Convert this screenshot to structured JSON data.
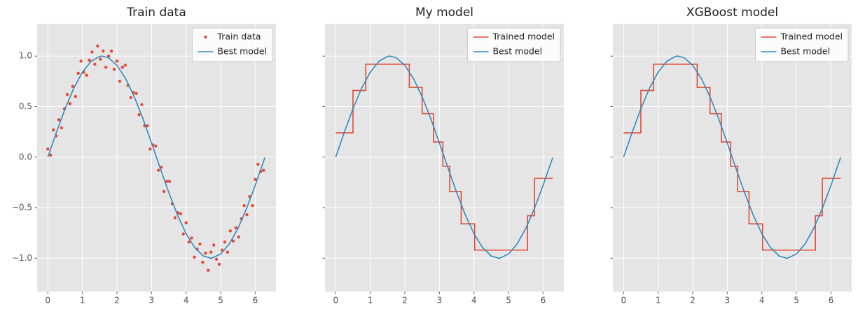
{
  "chart_data": [
    {
      "type": "line",
      "title": "Train data",
      "xlim": [
        -0.31,
        6.6
      ],
      "ylim": [
        -1.33,
        1.32
      ],
      "xticks": [
        0,
        1,
        2,
        3,
        4,
        5,
        6
      ],
      "yticks": [
        {
          "value": -1,
          "label": "−1.0"
        },
        {
          "value": -0.5,
          "label": "−0.5"
        },
        {
          "value": 0,
          "label": "0.0"
        },
        {
          "value": 0.5,
          "label": "0.5"
        },
        {
          "value": 1,
          "label": "1.0"
        }
      ],
      "ytick_labels": true,
      "grid": true,
      "legend": "upper right",
      "series": [
        {
          "name": "Train data",
          "color": "#e24a33",
          "mode": "points",
          "x": [
            0,
            0.08,
            0.16,
            0.24,
            0.32,
            0.4,
            0.48,
            0.56,
            0.64,
            0.72,
            0.8,
            0.88,
            0.96,
            1.04,
            1.12,
            1.2,
            1.28,
            1.36,
            1.44,
            1.52,
            1.6,
            1.68,
            1.76,
            1.84,
            1.92,
            2,
            2.08,
            2.16,
            2.24,
            2.32,
            2.4,
            2.48,
            2.56,
            2.64,
            2.72,
            2.8,
            2.88,
            2.96,
            3.04,
            3.12,
            3.2,
            3.28,
            3.36,
            3.44,
            3.52,
            3.6,
            3.68,
            3.76,
            3.84,
            3.92,
            4,
            4.08,
            4.16,
            4.24,
            4.32,
            4.4,
            4.48,
            4.56,
            4.64,
            4.72,
            4.8,
            4.88,
            4.96,
            5.04,
            5.12,
            5.2,
            5.28,
            5.36,
            5.44,
            5.52,
            5.6,
            5.68,
            5.76,
            5.84,
            5.92,
            6,
            6.08,
            6.16,
            6.24
          ],
          "values": [
            0.08,
            0.02,
            0.27,
            0.21,
            0.37,
            0.29,
            0.48,
            0.62,
            0.53,
            0.7,
            0.6,
            0.83,
            0.95,
            0.84,
            0.81,
            0.96,
            1.04,
            0.92,
            1.1,
            0.97,
            1.05,
            0.89,
            1,
            1.05,
            0.87,
            0.95,
            0.75,
            0.89,
            0.91,
            0.71,
            0.59,
            0.64,
            0.63,
            0.42,
            0.52,
            0.31,
            0.31,
            0.08,
            0.12,
            0.11,
            -0.13,
            -0.1,
            -0.34,
            -0.24,
            -0.24,
            -0.46,
            -0.6,
            -0.55,
            -0.56,
            -0.76,
            -0.65,
            -0.84,
            -0.8,
            -0.99,
            -0.91,
            -0.86,
            -1.04,
            -0.95,
            -1.12,
            -0.94,
            -0.87,
            -1.01,
            -1.06,
            -0.92,
            -0.84,
            -0.94,
            -0.73,
            -0.83,
            -0.7,
            -0.79,
            -0.61,
            -0.48,
            -0.57,
            -0.39,
            -0.48,
            -0.22,
            -0.07,
            -0.14,
            -0.13
          ]
        },
        {
          "name": "Best model",
          "color": "#348abd",
          "mode": "line",
          "x": [
            0,
            0.25,
            0.5,
            0.75,
            1,
            1.25,
            1.5,
            1.57,
            1.75,
            2,
            2.25,
            2.5,
            2.75,
            3,
            3.25,
            3.5,
            3.75,
            4,
            4.25,
            4.5,
            4.71,
            4.75,
            5,
            5.25,
            5.5,
            5.75,
            6,
            6.28
          ],
          "values": [
            0,
            0.247,
            0.479,
            0.682,
            0.841,
            0.949,
            0.997,
            1,
            0.984,
            0.909,
            0.778,
            0.598,
            0.382,
            0.141,
            -0.108,
            -0.351,
            -0.572,
            -0.757,
            -0.895,
            -0.978,
            -1,
            -0.999,
            -0.959,
            -0.859,
            -0.706,
            -0.508,
            -0.279,
            -0.003
          ]
        }
      ]
    },
    {
      "type": "line",
      "title": "My model",
      "xlim": [
        -0.31,
        6.6
      ],
      "ylim": [
        -1.33,
        1.32
      ],
      "xticks": [
        0,
        1,
        2,
        3,
        4,
        5,
        6
      ],
      "yticks": [
        -1,
        -0.5,
        0,
        0.5,
        1
      ],
      "ytick_labels": false,
      "grid": true,
      "legend": "upper right",
      "series": [
        {
          "name": "Trained model",
          "color": "#e24a33",
          "mode": "step",
          "x": [
            0,
            0.5,
            0.87,
            2.13,
            2.5,
            2.83,
            3.1,
            3.3,
            3.63,
            4.02,
            5.55,
            5.75,
            6.28
          ],
          "values": [
            0.24,
            0.66,
            0.92,
            0.69,
            0.43,
            0.15,
            -0.09,
            -0.34,
            -0.66,
            -0.92,
            -0.58,
            -0.21,
            -0.21
          ]
        },
        {
          "name": "Best model",
          "color": "#348abd",
          "mode": "line",
          "x": [
            0,
            0.25,
            0.5,
            0.75,
            1,
            1.25,
            1.5,
            1.57,
            1.75,
            2,
            2.25,
            2.5,
            2.75,
            3,
            3.25,
            3.5,
            3.75,
            4,
            4.25,
            4.5,
            4.71,
            4.75,
            5,
            5.25,
            5.5,
            5.75,
            6,
            6.28
          ],
          "values": [
            0,
            0.247,
            0.479,
            0.682,
            0.841,
            0.949,
            0.997,
            1,
            0.984,
            0.909,
            0.778,
            0.598,
            0.382,
            0.141,
            -0.108,
            -0.351,
            -0.572,
            -0.757,
            -0.895,
            -0.978,
            -1,
            -0.999,
            -0.959,
            -0.859,
            -0.706,
            -0.508,
            -0.279,
            -0.003
          ]
        }
      ]
    },
    {
      "type": "line",
      "title": "XGBoost model",
      "xlim": [
        -0.31,
        6.6
      ],
      "ylim": [
        -1.33,
        1.32
      ],
      "xticks": [
        0,
        1,
        2,
        3,
        4,
        5,
        6
      ],
      "yticks": [
        -1,
        -0.5,
        0,
        0.5,
        1
      ],
      "ytick_labels": false,
      "grid": true,
      "legend": "upper right",
      "series": [
        {
          "name": "Trained model",
          "color": "#e24a33",
          "mode": "step",
          "x": [
            0,
            0.5,
            0.87,
            2.13,
            2.5,
            2.83,
            3.1,
            3.3,
            3.63,
            4.02,
            5.55,
            5.75,
            6.28
          ],
          "values": [
            0.24,
            0.66,
            0.92,
            0.69,
            0.43,
            0.15,
            -0.09,
            -0.34,
            -0.66,
            -0.92,
            -0.58,
            -0.21,
            -0.21
          ]
        },
        {
          "name": "Best model",
          "color": "#348abd",
          "mode": "line",
          "x": [
            0,
            0.25,
            0.5,
            0.75,
            1,
            1.25,
            1.5,
            1.57,
            1.75,
            2,
            2.25,
            2.5,
            2.75,
            3,
            3.25,
            3.5,
            3.75,
            4,
            4.25,
            4.5,
            4.71,
            4.75,
            5,
            5.25,
            5.5,
            5.75,
            6,
            6.28
          ],
          "values": [
            0,
            0.247,
            0.479,
            0.682,
            0.841,
            0.949,
            0.997,
            1,
            0.984,
            0.909,
            0.778,
            0.598,
            0.382,
            0.141,
            -0.108,
            -0.351,
            -0.572,
            -0.757,
            -0.895,
            -0.978,
            -1,
            -0.999,
            -0.959,
            -0.859,
            -0.706,
            -0.508,
            -0.279,
            -0.003
          ]
        }
      ]
    }
  ]
}
